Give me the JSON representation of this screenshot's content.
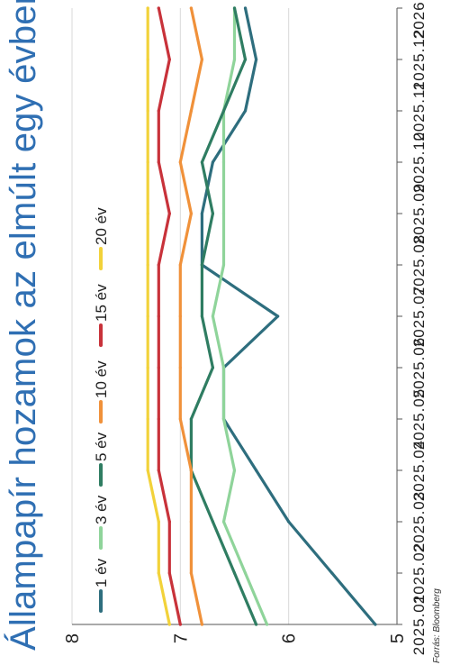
{
  "title": "Állampapír hozamok az elmúlt egy évben",
  "source": "Forrás: Bloomberg",
  "chart_data": {
    "type": "line",
    "title": "Állampapír hozamok az elmúlt egy évben",
    "orientation": "rotated 90° counter-clockwise",
    "x": [
      "2025.01",
      "2025.02",
      "2025.03",
      "2025.04",
      "2025.05",
      "2025.06",
      "2025.07",
      "2025.08",
      "2025.09",
      "2025.10",
      "2025.11",
      "2025.12",
      "2026.01"
    ],
    "ylim": [
      5,
      8
    ],
    "yticks": [
      5,
      6,
      7,
      8
    ],
    "grid": true,
    "legend": "top-left",
    "series": [
      {
        "name": "1 év",
        "color": "#2e6e7e",
        "values": [
          5.2,
          5.6,
          6.0,
          6.3,
          6.6,
          6.6,
          6.1,
          6.8,
          6.8,
          6.7,
          6.4,
          6.3,
          6.4
        ]
      },
      {
        "name": "3 év",
        "color": "#8fd49a",
        "values": [
          6.2,
          6.4,
          6.6,
          6.5,
          6.6,
          6.6,
          6.7,
          6.6,
          6.6,
          6.6,
          6.6,
          6.5,
          6.5
        ]
      },
      {
        "name": "5 év",
        "color": "#2f7d62",
        "values": [
          6.3,
          6.5,
          6.7,
          6.9,
          6.9,
          6.7,
          6.8,
          6.8,
          6.7,
          6.8,
          6.6,
          6.4,
          6.5
        ]
      },
      {
        "name": "10 év",
        "color": "#f0913a",
        "values": [
          6.8,
          6.9,
          6.9,
          6.9,
          7.0,
          7.0,
          7.0,
          7.0,
          6.9,
          7.0,
          6.9,
          6.8,
          6.9
        ]
      },
      {
        "name": "15 év",
        "color": "#c8323a",
        "values": [
          7.0,
          7.1,
          7.1,
          7.2,
          7.2,
          7.2,
          7.2,
          7.2,
          7.1,
          7.2,
          7.2,
          7.1,
          7.2
        ]
      },
      {
        "name": "20 év",
        "color": "#f2d23a",
        "values": [
          7.1,
          7.2,
          7.2,
          7.3,
          7.3,
          7.3,
          7.3,
          7.3,
          7.3,
          7.3,
          7.3,
          7.3,
          7.3
        ]
      }
    ]
  }
}
